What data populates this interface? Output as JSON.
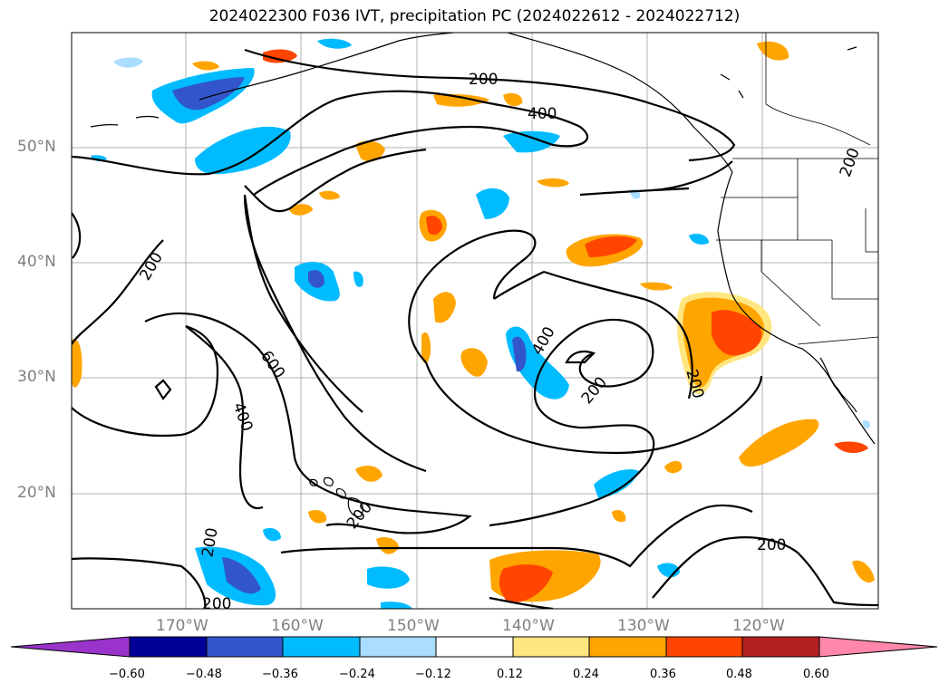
{
  "title": "2024022300 F036 IVT, precipitation PC (2024022612 - 2024022712)",
  "lat_labels": [
    "50°N",
    "40°N",
    "30°N",
    "20°N"
  ],
  "lon_labels": [
    "170°W",
    "160°W",
    "150°W",
    "140°W",
    "130°W",
    "120°W"
  ],
  "contour_labels": [
    "200",
    "400",
    "600"
  ],
  "colorbar": {
    "ticks": [
      "−0.60",
      "−0.48",
      "−0.36",
      "−0.24",
      "−0.12",
      "0.12",
      "0.24",
      "0.36",
      "0.48",
      "0.60"
    ],
    "colors": [
      "#9933cc",
      "#000099",
      "#3355cc",
      "#00bbff",
      "#aaddff",
      "#ffffff",
      "#ffe680",
      "#ffa500",
      "#ff4500",
      "#b22222",
      "#ff88aa"
    ]
  }
}
